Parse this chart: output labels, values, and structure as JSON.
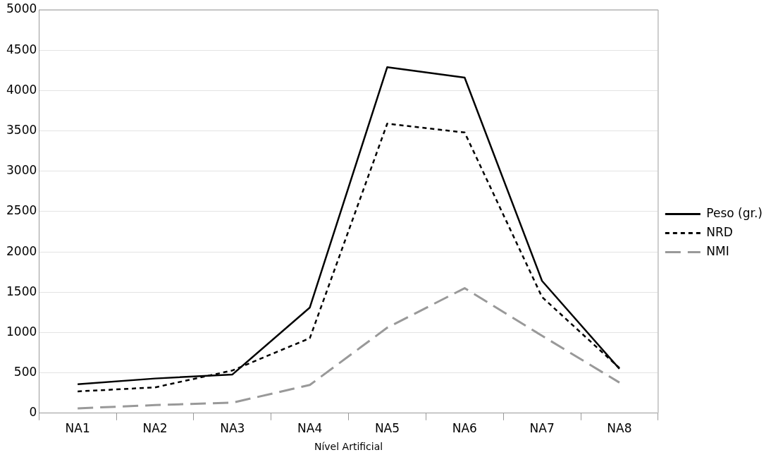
{
  "chart_data": {
    "type": "line",
    "xlabel": "Nível Artificial",
    "categories": [
      "NA1",
      "NA2",
      "NA3",
      "NA4",
      "NA5",
      "NA6",
      "NA7",
      "NA8"
    ],
    "series": [
      {
        "name": "Peso (gr.)",
        "color": "#000000",
        "line_style": "solid",
        "values": [
          360,
          430,
          480,
          1310,
          4290,
          4160,
          1640,
          550
        ]
      },
      {
        "name": "NRD",
        "color": "#000000",
        "line_style": "dotted",
        "values": [
          270,
          320,
          530,
          930,
          3590,
          3480,
          1440,
          560
        ]
      },
      {
        "name": "NMI",
        "color": "#999999",
        "line_style": "dashed",
        "values": [
          60,
          100,
          130,
          350,
          1060,
          1550,
          960,
          380
        ]
      }
    ],
    "ylim": [
      0,
      5000
    ],
    "yticks": [
      0,
      500,
      1000,
      1500,
      2000,
      2500,
      3000,
      3500,
      4000,
      4500,
      5000
    ],
    "grid": "y",
    "legend": "right",
    "marker": "none"
  }
}
